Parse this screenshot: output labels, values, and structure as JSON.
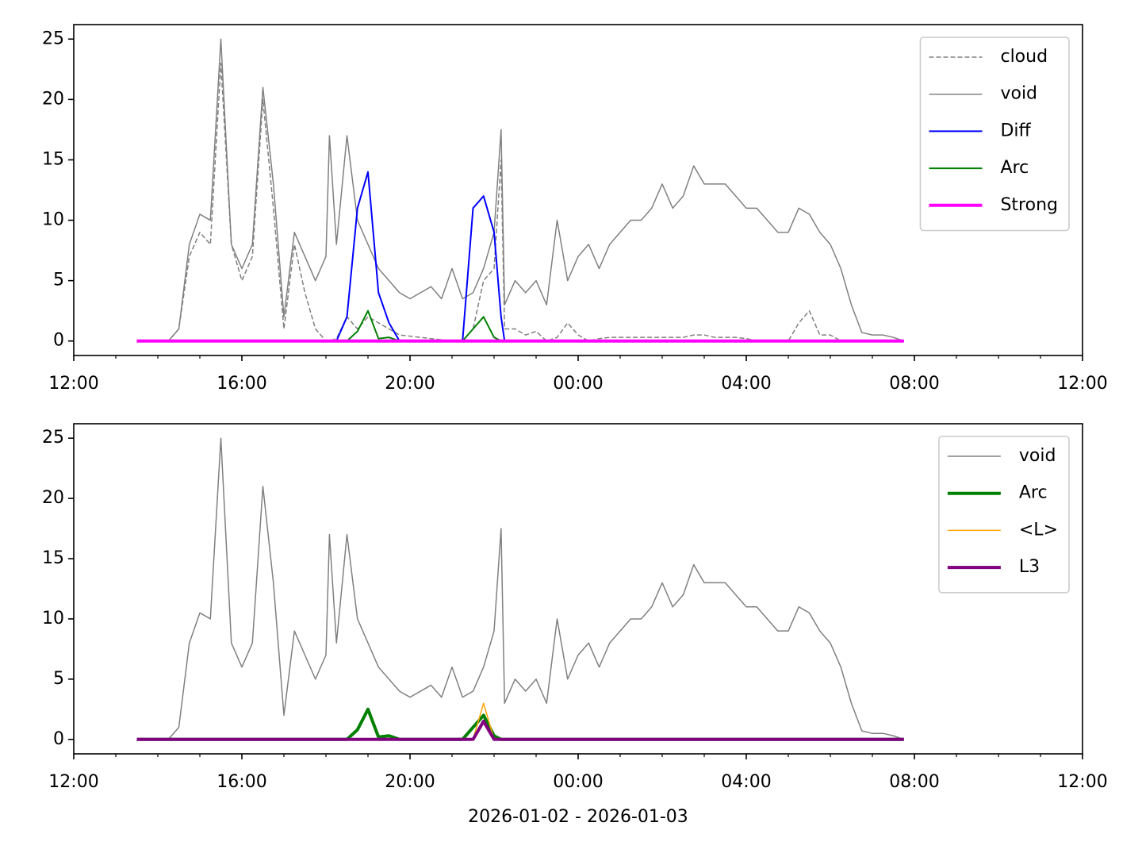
{
  "chart_data": [
    {
      "type": "line",
      "x": [
        "13:30",
        "13:45",
        "14:00",
        "14:15",
        "14:30",
        "14:45",
        "15:00",
        "15:15",
        "15:30",
        "15:45",
        "16:00",
        "16:15",
        "16:30",
        "16:45",
        "17:00",
        "17:15",
        "17:30",
        "17:45",
        "18:00",
        "18:05",
        "18:15",
        "18:30",
        "18:45",
        "19:00",
        "19:15",
        "19:30",
        "19:45",
        "20:00",
        "20:15",
        "20:30",
        "20:45",
        "21:00",
        "21:15",
        "21:30",
        "21:45",
        "22:00",
        "22:10",
        "22:15",
        "22:30",
        "22:45",
        "23:00",
        "23:15",
        "23:30",
        "23:45",
        "00:00",
        "00:15",
        "00:30",
        "00:45",
        "01:00",
        "01:15",
        "01:30",
        "01:45",
        "02:00",
        "02:15",
        "02:30",
        "02:45",
        "03:00",
        "03:15",
        "03:30",
        "03:45",
        "04:00",
        "04:15",
        "04:30",
        "04:45",
        "05:00",
        "05:15",
        "05:30",
        "05:45",
        "06:00",
        "06:15",
        "06:30",
        "06:45",
        "07:00",
        "07:15",
        "07:30",
        "07:45"
      ],
      "series": [
        {
          "name": "cloud",
          "color": "#808080",
          "dash": true,
          "width": 1.5,
          "values": [
            0,
            0,
            0,
            0,
            1,
            7,
            9,
            8,
            23,
            8,
            5,
            7,
            20,
            11,
            1,
            8,
            4,
            1,
            0,
            0,
            0.2,
            2,
            1,
            2,
            1.5,
            1,
            0.5,
            0.4,
            0.3,
            0.2,
            0.1,
            0,
            0,
            1,
            5,
            6,
            15,
            1,
            1,
            0.5,
            0.8,
            0,
            0.3,
            1.5,
            0.5,
            0,
            0.2,
            0.3,
            0.3,
            0.3,
            0.3,
            0.3,
            0.3,
            0.3,
            0.3,
            0.5,
            0.5,
            0.3,
            0.3,
            0.3,
            0.2,
            0,
            0,
            0,
            0,
            1.5,
            2.5,
            0.5,
            0.5,
            0,
            0,
            0,
            0,
            0,
            0,
            0
          ]
        },
        {
          "name": "void",
          "color": "#808080",
          "width": 1.5,
          "values": [
            0,
            0,
            0,
            0,
            1,
            8,
            10.5,
            10,
            25,
            8,
            6,
            8,
            21,
            13,
            2,
            9,
            7,
            5,
            7,
            17,
            8,
            17,
            10,
            8,
            6,
            5,
            4,
            3.5,
            4,
            4.5,
            3.5,
            6,
            3.5,
            4,
            6,
            9,
            17.5,
            3,
            5,
            4,
            5,
            3,
            10,
            5,
            7,
            8,
            6,
            8,
            9,
            10,
            10,
            11,
            13,
            11,
            12,
            14.5,
            13,
            13,
            13,
            12,
            11,
            11,
            10,
            9,
            9,
            11,
            10.5,
            9,
            8,
            6,
            3,
            0.7,
            0.5,
            0.5,
            0.3,
            0
          ]
        },
        {
          "name": "Diff",
          "color": "#0000ff",
          "width": 2,
          "values": [
            0,
            0,
            0,
            0,
            0,
            0,
            0,
            0,
            0,
            0,
            0,
            0,
            0,
            0,
            0,
            0,
            0,
            0,
            0,
            0,
            0,
            2,
            11,
            14,
            4,
            1.5,
            0,
            0,
            0,
            0,
            0,
            0,
            0,
            11,
            12,
            9,
            2,
            0,
            0,
            0,
            0,
            0,
            0,
            0,
            0,
            0,
            0,
            0,
            0,
            0,
            0,
            0,
            0,
            0,
            0,
            0,
            0,
            0,
            0,
            0,
            0,
            0,
            0,
            0,
            0,
            0,
            0,
            0,
            0,
            0,
            0,
            0,
            0,
            0,
            0,
            0
          ]
        },
        {
          "name": "Arc",
          "color": "#008000",
          "width": 2,
          "values": [
            0,
            0,
            0,
            0,
            0,
            0,
            0,
            0,
            0,
            0,
            0,
            0,
            0,
            0,
            0,
            0,
            0,
            0,
            0,
            0,
            0,
            0,
            0.8,
            2.5,
            0.2,
            0.3,
            0,
            0,
            0,
            0,
            0,
            0,
            0,
            1,
            2,
            0.3,
            0,
            0,
            0,
            0,
            0,
            0,
            0,
            0,
            0,
            0,
            0,
            0,
            0,
            0,
            0,
            0,
            0,
            0,
            0,
            0,
            0,
            0,
            0,
            0,
            0,
            0,
            0,
            0,
            0,
            0,
            0,
            0,
            0,
            0,
            0,
            0,
            0,
            0,
            0,
            0
          ]
        },
        {
          "name": "Strong",
          "color": "#ff00ff",
          "width": 4,
          "values": [
            0,
            0,
            0,
            0,
            0,
            0,
            0,
            0,
            0,
            0,
            0,
            0,
            0,
            0,
            0,
            0,
            0,
            0,
            0,
            0,
            0,
            0,
            0,
            0,
            0,
            0,
            0,
            0,
            0,
            0,
            0,
            0,
            0,
            0,
            0,
            0,
            0,
            0,
            0,
            0,
            0,
            0,
            0,
            0,
            0,
            0,
            0,
            0,
            0,
            0,
            0,
            0,
            0,
            0,
            0,
            0,
            0,
            0,
            0,
            0,
            0,
            0,
            0,
            0,
            0,
            0,
            0,
            0,
            0,
            0,
            0,
            0,
            0,
            0,
            0,
            0
          ]
        }
      ],
      "xlim": [
        "12:00",
        "12:00"
      ],
      "xticks": [
        "12:00",
        "16:00",
        "20:00",
        "00:00",
        "04:00",
        "08:00",
        "12:00"
      ],
      "ylim": [
        -1.2,
        26.2
      ],
      "yticks": [
        0,
        5,
        10,
        15,
        20,
        25
      ],
      "legend": "upper right"
    },
    {
      "type": "line",
      "x": [
        "13:30",
        "13:45",
        "14:00",
        "14:15",
        "14:30",
        "14:45",
        "15:00",
        "15:15",
        "15:30",
        "15:45",
        "16:00",
        "16:15",
        "16:30",
        "16:45",
        "17:00",
        "17:15",
        "17:30",
        "17:45",
        "18:00",
        "18:05",
        "18:15",
        "18:30",
        "18:45",
        "19:00",
        "19:15",
        "19:30",
        "19:45",
        "20:00",
        "20:15",
        "20:30",
        "20:45",
        "21:00",
        "21:15",
        "21:30",
        "21:45",
        "22:00",
        "22:10",
        "22:15",
        "22:30",
        "22:45",
        "23:00",
        "23:15",
        "23:30",
        "23:45",
        "00:00",
        "00:15",
        "00:30",
        "00:45",
        "01:00",
        "01:15",
        "01:30",
        "01:45",
        "02:00",
        "02:15",
        "02:30",
        "02:45",
        "03:00",
        "03:15",
        "03:30",
        "03:45",
        "04:00",
        "04:15",
        "04:30",
        "04:45",
        "05:00",
        "05:15",
        "05:30",
        "05:45",
        "06:00",
        "06:15",
        "06:30",
        "06:45",
        "07:00",
        "07:15",
        "07:30",
        "07:45"
      ],
      "series": [
        {
          "name": "void",
          "color": "#808080",
          "width": 1.5,
          "values": [
            0,
            0,
            0,
            0,
            1,
            8,
            10.5,
            10,
            25,
            8,
            6,
            8,
            21,
            13,
            2,
            9,
            7,
            5,
            7,
            17,
            8,
            17,
            10,
            8,
            6,
            5,
            4,
            3.5,
            4,
            4.5,
            3.5,
            6,
            3.5,
            4,
            6,
            9,
            17.5,
            3,
            5,
            4,
            5,
            3,
            10,
            5,
            7,
            8,
            6,
            8,
            9,
            10,
            10,
            11,
            13,
            11,
            12,
            14.5,
            13,
            13,
            13,
            12,
            11,
            11,
            10,
            9,
            9,
            11,
            10.5,
            9,
            8,
            6,
            3,
            0.7,
            0.5,
            0.5,
            0.3,
            0
          ]
        },
        {
          "name": "Arc",
          "color": "#008000",
          "width": 4,
          "values": [
            0,
            0,
            0,
            0,
            0,
            0,
            0,
            0,
            0,
            0,
            0,
            0,
            0,
            0,
            0,
            0,
            0,
            0,
            0,
            0,
            0,
            0,
            0.8,
            2.5,
            0.2,
            0.3,
            0,
            0,
            0,
            0,
            0,
            0,
            0,
            1,
            2,
            0.3,
            0,
            0,
            0,
            0,
            0,
            0,
            0,
            0,
            0,
            0,
            0,
            0,
            0,
            0,
            0,
            0,
            0,
            0,
            0,
            0,
            0,
            0,
            0,
            0,
            0,
            0,
            0,
            0,
            0,
            0,
            0,
            0,
            0,
            0,
            0,
            0,
            0,
            0,
            0,
            0
          ]
        },
        {
          "name": "<L>",
          "color": "#ffa500",
          "width": 1.5,
          "values": [
            0,
            0,
            0,
            0,
            0,
            0,
            0,
            0,
            0,
            0,
            0,
            0,
            0,
            0,
            0,
            0,
            0,
            0,
            0,
            0,
            0,
            0,
            0,
            0,
            0,
            0,
            0,
            0,
            0,
            0,
            0,
            0,
            0,
            0,
            3,
            0,
            0,
            0,
            0,
            0,
            0,
            0,
            0,
            0,
            0,
            0,
            0,
            0,
            0,
            0,
            0,
            0,
            0,
            0,
            0,
            0,
            0,
            0,
            0,
            0,
            0,
            0,
            0,
            0,
            0,
            0,
            0,
            0,
            0,
            0,
            0,
            0,
            0,
            0,
            0,
            0
          ]
        },
        {
          "name": "L3",
          "color": "#800080",
          "width": 4,
          "values": [
            0,
            0,
            0,
            0,
            0,
            0,
            0,
            0,
            0,
            0,
            0,
            0,
            0,
            0,
            0,
            0,
            0,
            0,
            0,
            0,
            0,
            0,
            0,
            0,
            0,
            0,
            0,
            0,
            0,
            0,
            0,
            0,
            0,
            0,
            1.5,
            0,
            0,
            0,
            0,
            0,
            0,
            0,
            0,
            0,
            0,
            0,
            0,
            0,
            0,
            0,
            0,
            0,
            0,
            0,
            0,
            0,
            0,
            0,
            0,
            0,
            0,
            0,
            0,
            0,
            0,
            0,
            0,
            0,
            0,
            0,
            0,
            0,
            0,
            0,
            0,
            0
          ]
        }
      ],
      "xlim": [
        "12:00",
        "12:00"
      ],
      "xticks": [
        "12:00",
        "16:00",
        "20:00",
        "00:00",
        "04:00",
        "08:00",
        "12:00"
      ],
      "ylim": [
        -1.2,
        26.2
      ],
      "yticks": [
        0,
        5,
        10,
        15,
        20,
        25
      ],
      "legend": "upper right",
      "xlabel": "2026-01-02 - 2026-01-03"
    }
  ]
}
